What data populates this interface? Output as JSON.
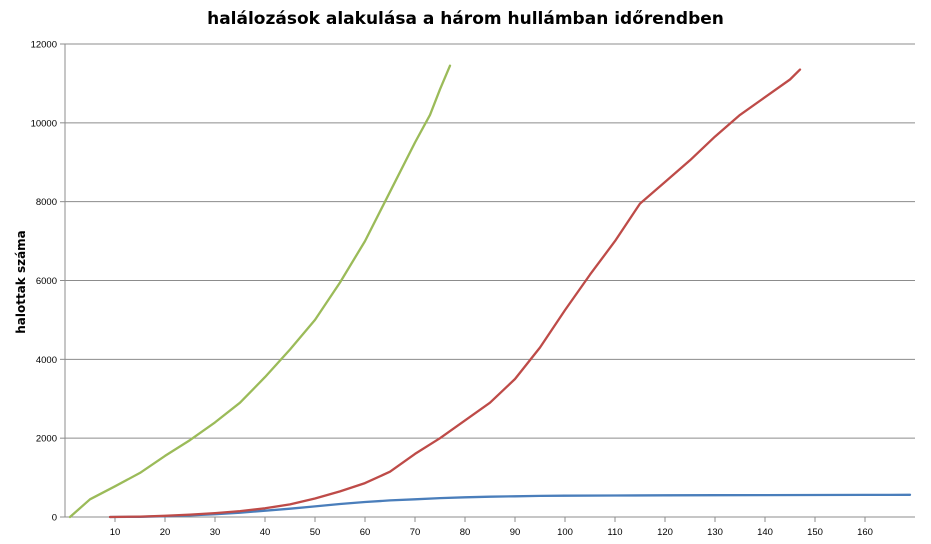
{
  "chart_data": {
    "type": "line",
    "title": "halálozások alakulása a három hullámban időrendben",
    "xlabel": "",
    "ylabel": "halottak száma",
    "ylim": [
      0,
      12000
    ],
    "xlim": [
      0,
      170
    ],
    "x_ticks": [
      "10",
      "20",
      "30",
      "40",
      "50",
      "60",
      "70",
      "80",
      "90",
      "100",
      "110",
      "120",
      "130",
      "140",
      "150",
      "160"
    ],
    "y_ticks": [
      "0",
      "2000",
      "4000",
      "6000",
      "8000",
      "10000",
      "12000"
    ],
    "grid": true,
    "legend": "none",
    "series": [
      {
        "color": "#4a7ebb",
        "points": [
          [
            9,
            1
          ],
          [
            15,
            5
          ],
          [
            20,
            20
          ],
          [
            25,
            40
          ],
          [
            30,
            70
          ],
          [
            35,
            110
          ],
          [
            40,
            160
          ],
          [
            45,
            210
          ],
          [
            50,
            270
          ],
          [
            55,
            330
          ],
          [
            60,
            380
          ],
          [
            65,
            420
          ],
          [
            70,
            450
          ],
          [
            75,
            480
          ],
          [
            80,
            500
          ],
          [
            85,
            515
          ],
          [
            90,
            525
          ],
          [
            95,
            535
          ],
          [
            100,
            540
          ],
          [
            110,
            545
          ],
          [
            120,
            550
          ],
          [
            130,
            553
          ],
          [
            140,
            555
          ],
          [
            150,
            558
          ],
          [
            160,
            560
          ],
          [
            169,
            562
          ]
        ]
      },
      {
        "color": "#be4b48",
        "points": [
          [
            9,
            1
          ],
          [
            15,
            10
          ],
          [
            20,
            30
          ],
          [
            25,
            60
          ],
          [
            30,
            100
          ],
          [
            35,
            150
          ],
          [
            40,
            220
          ],
          [
            45,
            320
          ],
          [
            50,
            470
          ],
          [
            55,
            650
          ],
          [
            60,
            860
          ],
          [
            65,
            1150
          ],
          [
            70,
            1600
          ],
          [
            75,
            2000
          ],
          [
            80,
            2450
          ],
          [
            85,
            2900
          ],
          [
            90,
            3500
          ],
          [
            95,
            4300
          ],
          [
            100,
            5250
          ],
          [
            105,
            6150
          ],
          [
            110,
            7000
          ],
          [
            115,
            7950
          ],
          [
            120,
            8500
          ],
          [
            125,
            9050
          ],
          [
            130,
            9650
          ],
          [
            135,
            10200
          ],
          [
            140,
            10650
          ],
          [
            145,
            11100
          ],
          [
            147,
            11350
          ]
        ]
      },
      {
        "color": "#9bbb59",
        "points": [
          [
            1,
            0
          ],
          [
            5,
            450
          ],
          [
            10,
            780
          ],
          [
            15,
            1120
          ],
          [
            20,
            1550
          ],
          [
            25,
            1950
          ],
          [
            30,
            2400
          ],
          [
            35,
            2900
          ],
          [
            40,
            3550
          ],
          [
            45,
            4250
          ],
          [
            50,
            5000
          ],
          [
            55,
            5950
          ],
          [
            60,
            7000
          ],
          [
            65,
            8250
          ],
          [
            70,
            9500
          ],
          [
            73,
            10200
          ],
          [
            75,
            10850
          ],
          [
            77,
            11450
          ]
        ]
      }
    ]
  }
}
